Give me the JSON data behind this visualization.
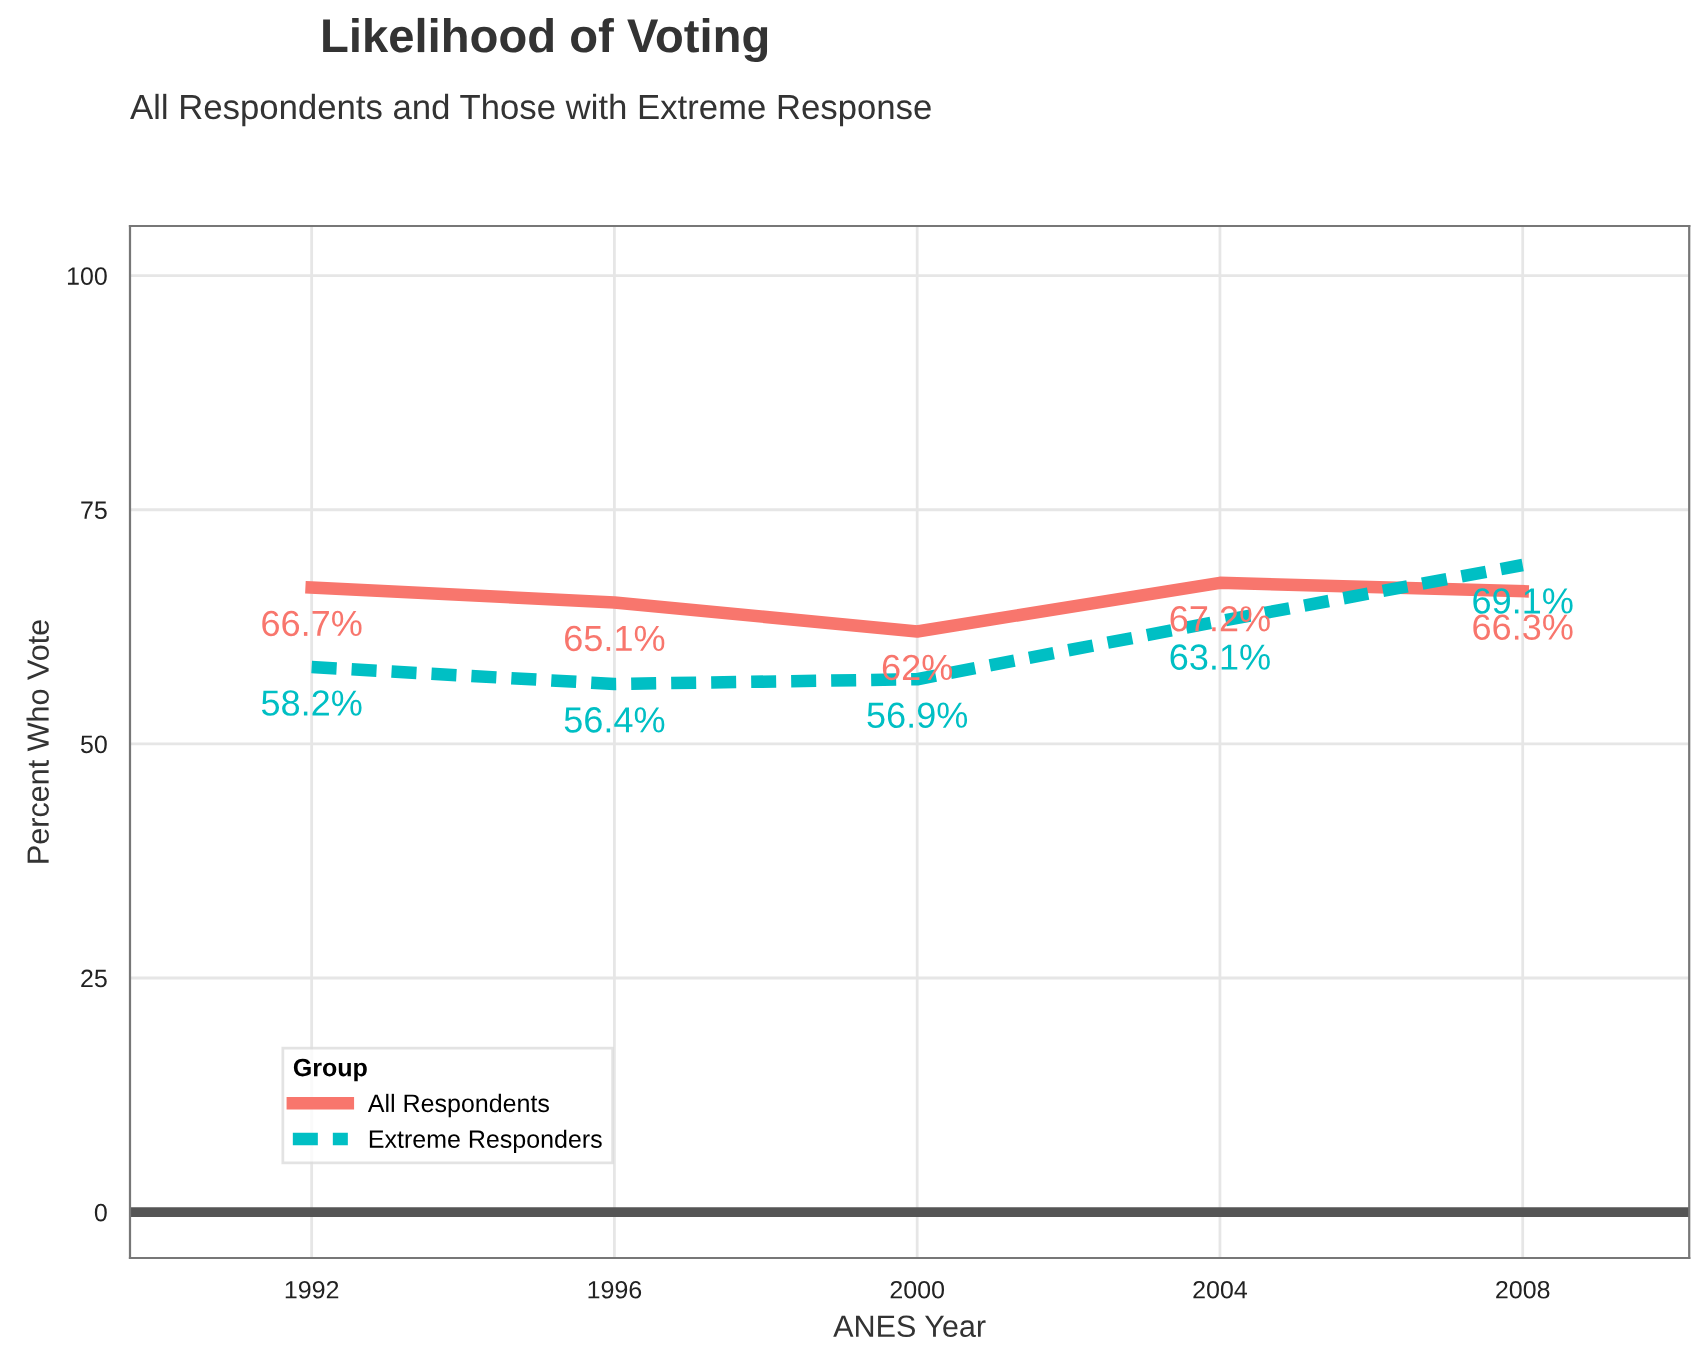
{
  "chart_data": {
    "type": "line",
    "title": "Likelihood of Voting",
    "subtitle": "All Respondents and Those with Extreme Response",
    "xlabel": "ANES Year",
    "ylabel": "Percent Who Vote",
    "legend_title": "Group",
    "x": [
      1992,
      1996,
      2000,
      2004,
      2008
    ],
    "series": [
      {
        "name": "All Respondents",
        "color": "#f8766d",
        "line_style": "solid",
        "values": [
          66.7,
          65.1,
          62,
          67.2,
          66.3
        ],
        "value_labels": [
          "66.7%",
          "65.1%",
          "62%",
          "67.2%",
          "66.3%"
        ]
      },
      {
        "name": "Extreme Responders",
        "color": "#00bfc4",
        "line_style": "dashed",
        "values": [
          58.2,
          56.4,
          56.9,
          63.1,
          69.1
        ],
        "value_labels": [
          "58.2%",
          "56.4%",
          "56.9%",
          "63.1%",
          "69.1%"
        ]
      }
    ],
    "xlim": [
      1989.6,
      2010.2
    ],
    "xticks": [
      1992,
      1996,
      2000,
      2004,
      2008
    ],
    "ylim": [
      -4.9,
      105.3
    ],
    "yticks": [
      0,
      25,
      50,
      75,
      100
    ],
    "ref_lines": [
      {
        "axis": "y",
        "value": 0,
        "color": "#555555"
      }
    ],
    "grid": true,
    "legend": "bottom left",
    "marker": "none"
  }
}
